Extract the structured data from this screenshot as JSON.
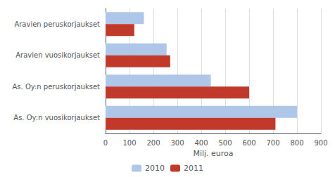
{
  "chart_data": {
    "type": "bar",
    "orientation": "horizontal",
    "categories": [
      "As. Oy:n vuosikorjaukset",
      "As. Oy:n peruskorjaukset",
      "Aravien vuosikorjaukset",
      "Aravien peruskorjaukset"
    ],
    "series": [
      {
        "name": "2010",
        "color": "#aec6e8",
        "values": [
          800,
          440,
          255,
          160
        ]
      },
      {
        "name": "2011",
        "color": "#c0392b",
        "values": [
          710,
          600,
          270,
          120
        ]
      }
    ],
    "xlabel": "Milj. euroa",
    "xlim": [
      0,
      900
    ],
    "xticks": [
      0,
      100,
      200,
      300,
      400,
      500,
      600,
      700,
      800,
      900
    ],
    "grid": true,
    "legend": "bottom"
  }
}
